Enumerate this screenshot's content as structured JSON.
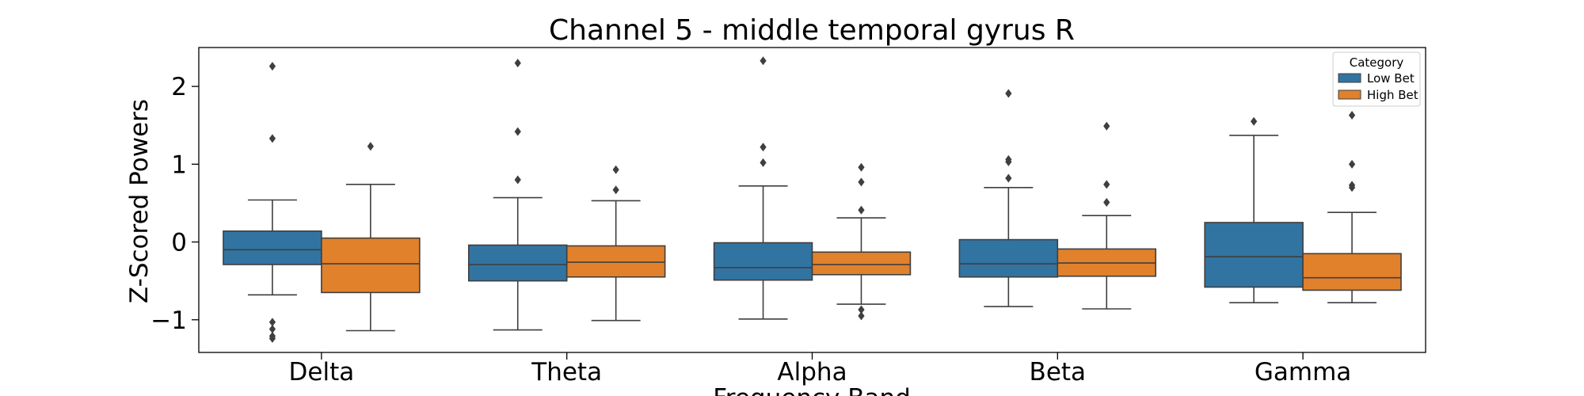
{
  "chart_data": {
    "type": "box",
    "title": "Channel 5 - middle temporal gyrus R",
    "xlabel": "Frequency Band",
    "ylabel": "Z-Scored Powers",
    "categories": [
      "Delta",
      "Theta",
      "Alpha",
      "Beta",
      "Gamma"
    ],
    "ylim": [
      -1.42,
      2.5
    ],
    "yticks": [
      -1,
      0,
      1,
      2
    ],
    "grid": false,
    "legend": {
      "title": "Category",
      "position": "top-right"
    },
    "series": [
      {
        "name": "Low Bet",
        "color": "#3274a1",
        "boxes": [
          {
            "whisker_low": -0.68,
            "q1": -0.29,
            "median": -0.1,
            "q3": 0.14,
            "whisker_high": 0.54,
            "outliers": [
              2.26,
              1.33,
              -1.03,
              -1.12,
              -1.21,
              -1.24
            ]
          },
          {
            "whisker_low": -1.13,
            "q1": -0.5,
            "median": -0.29,
            "q3": -0.04,
            "whisker_high": 0.57,
            "outliers": [
              2.3,
              1.42,
              0.8
            ]
          },
          {
            "whisker_low": -0.99,
            "q1": -0.49,
            "median": -0.33,
            "q3": -0.01,
            "whisker_high": 0.72,
            "outliers": [
              2.33,
              1.22,
              1.02
            ]
          },
          {
            "whisker_low": -0.83,
            "q1": -0.45,
            "median": -0.28,
            "q3": 0.03,
            "whisker_high": 0.7,
            "outliers": [
              1.91,
              1.06,
              1.03,
              0.82
            ]
          },
          {
            "whisker_low": -0.78,
            "q1": -0.58,
            "median": -0.19,
            "q3": 0.25,
            "whisker_high": 1.37,
            "outliers": [
              1.55
            ]
          }
        ]
      },
      {
        "name": "High Bet",
        "color": "#e1812c",
        "boxes": [
          {
            "whisker_low": -1.14,
            "q1": -0.65,
            "median": -0.28,
            "q3": 0.05,
            "whisker_high": 0.74,
            "outliers": [
              1.23
            ]
          },
          {
            "whisker_low": -1.01,
            "q1": -0.45,
            "median": -0.26,
            "q3": -0.05,
            "whisker_high": 0.53,
            "outliers": [
              0.93,
              0.67
            ]
          },
          {
            "whisker_low": -0.8,
            "q1": -0.42,
            "median": -0.29,
            "q3": -0.13,
            "whisker_high": 0.31,
            "outliers": [
              0.96,
              0.77,
              0.41,
              -0.87,
              -0.95
            ]
          },
          {
            "whisker_low": -0.86,
            "q1": -0.44,
            "median": -0.27,
            "q3": -0.09,
            "whisker_high": 0.34,
            "outliers": [
              1.49,
              0.74,
              0.51
            ]
          },
          {
            "whisker_low": -0.78,
            "q1": -0.62,
            "median": -0.46,
            "q3": -0.15,
            "whisker_high": 0.38,
            "outliers": [
              1.63,
              1.0,
              0.73,
              0.7
            ]
          }
        ]
      }
    ]
  }
}
